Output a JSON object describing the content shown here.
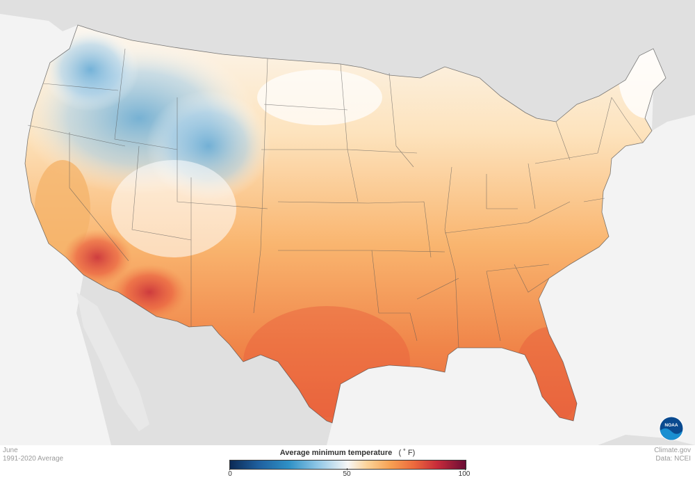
{
  "map": {
    "month": "June",
    "period": "1991-2020 Average",
    "legend_title": "Average minimum temperature",
    "legend_unit": "( ˚ F)",
    "legend_ticks": [
      "0",
      "50",
      "100"
    ],
    "legend_range": [
      0,
      100
    ],
    "colors": {
      "cold": "#1f5f9e",
      "neutral": "#f7f7f7",
      "warm": "#f7a153",
      "hot": "#c72b3a",
      "land_background": "#e0e0e0",
      "ocean": "#f3f3f3"
    }
  },
  "credits": {
    "site": "Climate.gov",
    "source": "Data: NCEI"
  },
  "logo": {
    "text": "NOAA",
    "icon": "noaa-logo-icon"
  }
}
